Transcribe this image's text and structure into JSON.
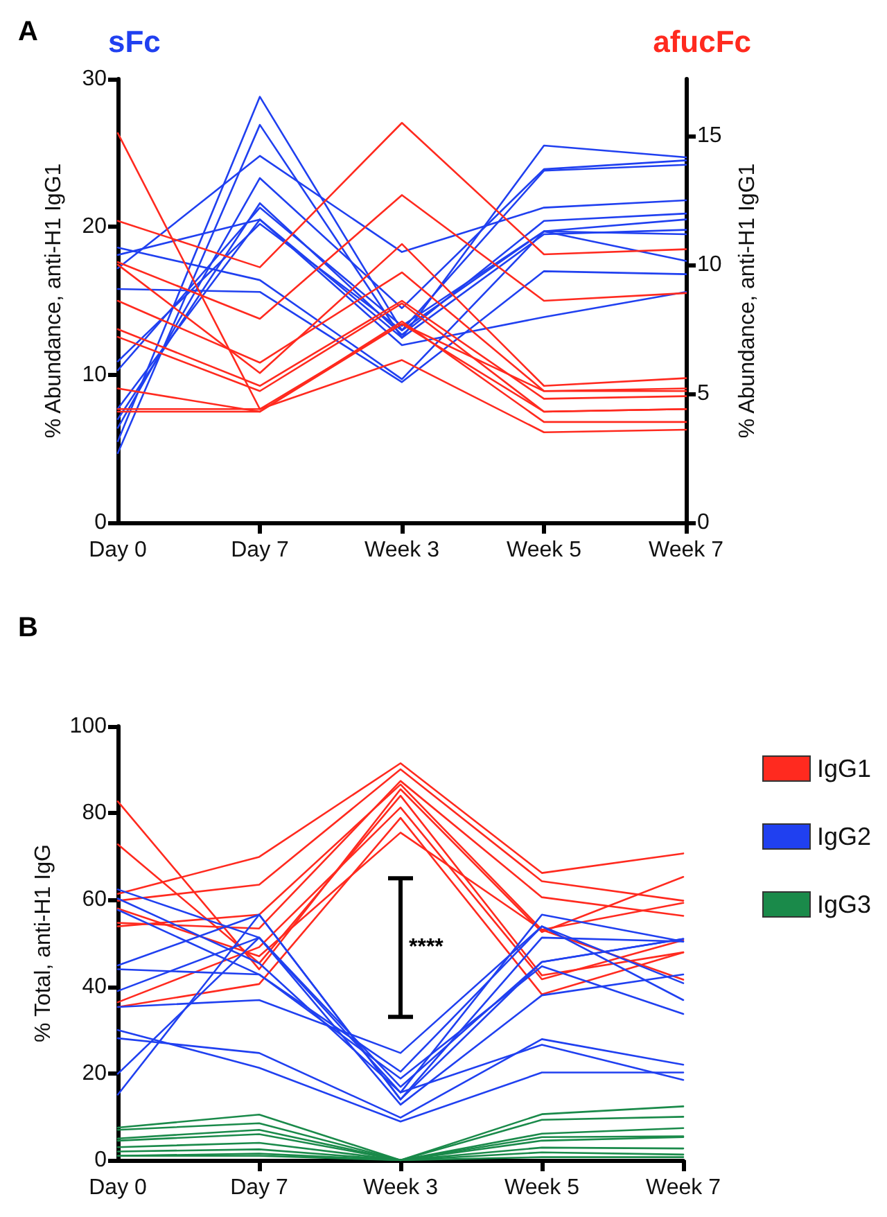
{
  "chart_data": [
    {
      "type": "line",
      "title": "A",
      "ylabel": "% Abundance, anti-H1 IgG1",
      "y2label": "% Abundance, anti-H1 IgG1",
      "categories": [
        "Day 0",
        "Day 7",
        "Week 3",
        "Week 5",
        "Week 7"
      ],
      "ylim": [
        0,
        30
      ],
      "yticks": [
        0,
        10,
        20,
        30
      ],
      "y2lim": [
        0,
        17.2
      ],
      "y2ticks": [
        0,
        5,
        10,
        15
      ],
      "grid": false,
      "legend": "top",
      "marker": "none",
      "line_style": "solid",
      "series": [
        {
          "name": "sFc",
          "color": "#2040f0",
          "values": [
            5.5,
            28.8,
            13.0,
            23.8,
            24.2
          ]
        },
        {
          "color": "#2040f0",
          "values": [
            4.7,
            26.9,
            12.5,
            25.5,
            24.7
          ]
        },
        {
          "color": "#2040f0",
          "values": [
            17.2,
            24.8,
            18.3,
            21.3,
            21.8
          ]
        },
        {
          "color": "#2040f0",
          "values": [
            6.4,
            23.3,
            14.5,
            23.9,
            24.5
          ]
        },
        {
          "color": "#2040f0",
          "values": [
            7.0,
            21.6,
            12.7,
            20.4,
            20.9
          ]
        },
        {
          "color": "#2040f0",
          "values": [
            10.3,
            21.3,
            13.3,
            19.7,
            20.5
          ]
        },
        {
          "color": "#2040f0",
          "values": [
            7.7,
            20.5,
            12.5,
            19.5,
            19.8
          ]
        },
        {
          "color": "#2040f0",
          "values": [
            10.9,
            20.2,
            13.0,
            19.7,
            19.5
          ]
        },
        {
          "color": "#2040f0",
          "values": [
            18.6,
            16.4,
            9.7,
            19.7,
            17.7
          ]
        },
        {
          "color": "#2040f0",
          "values": [
            15.8,
            15.6,
            9.5,
            17.0,
            16.8
          ]
        },
        {
          "color": "#2040f0",
          "values": [
            18.1,
            20.5,
            12.0,
            13.9,
            15.6
          ]
        },
        {
          "name": "afucFc",
          "color": "#ff2a1f",
          "axis": "y2",
          "values": [
            15.1,
            4.4,
            7.7,
            4.3,
            4.4
          ]
        },
        {
          "color": "#ff2a1f",
          "axis": "y2",
          "values": [
            11.7,
            9.9,
            15.5,
            10.4,
            10.6
          ]
        },
        {
          "color": "#ff2a1f",
          "axis": "y2",
          "values": [
            10.1,
            7.9,
            12.7,
            8.6,
            8.9
          ]
        },
        {
          "color": "#ff2a1f",
          "axis": "y2",
          "values": [
            10.0,
            5.8,
            10.8,
            5.3,
            5.6
          ]
        },
        {
          "color": "#ff2a1f",
          "axis": "y2",
          "values": [
            8.6,
            6.2,
            9.7,
            5.1,
            5.2
          ]
        },
        {
          "color": "#ff2a1f",
          "axis": "y2",
          "values": [
            7.5,
            5.3,
            8.6,
            4.8,
            4.9
          ]
        },
        {
          "color": "#ff2a1f",
          "axis": "y2",
          "values": [
            7.2,
            5.1,
            8.5,
            4.3,
            4.4
          ]
        },
        {
          "color": "#ff2a1f",
          "axis": "y2",
          "values": [
            5.2,
            4.3,
            7.8,
            3.9,
            3.9
          ]
        },
        {
          "color": "#ff2a1f",
          "axis": "y2",
          "values": [
            4.4,
            4.4,
            6.3,
            3.5,
            3.6
          ]
        },
        {
          "color": "#ff2a1f",
          "axis": "y2",
          "values": [
            4.3,
            4.3,
            7.7,
            5.1,
            5.1
          ]
        }
      ]
    },
    {
      "type": "line",
      "title": "B",
      "ylabel": "% Total, anti-H1 IgG",
      "categories": [
        "Day 0",
        "Day 7",
        "Week 3",
        "Week 5",
        "Week 7"
      ],
      "ylim": [
        0,
        100
      ],
      "yticks": [
        0,
        20,
        40,
        60,
        80,
        100
      ],
      "grid": false,
      "legend": "right",
      "marker": "none",
      "line_style": "solid",
      "annotations": [
        "****"
      ],
      "series": [
        {
          "name": "IgG1",
          "color": "#ff2a1f",
          "values": [
            82.7,
            44.0,
            85.5,
            52.6,
            65.3
          ]
        },
        {
          "color": "#ff2a1f",
          "values": [
            72.8,
            45.4,
            84.0,
            42.6,
            47.9
          ]
        },
        {
          "color": "#ff2a1f",
          "values": [
            61.4,
            69.9,
            91.5,
            66.2,
            70.7
          ]
        },
        {
          "color": "#ff2a1f",
          "values": [
            59.8,
            63.5,
            90.1,
            64.3,
            59.8
          ]
        },
        {
          "color": "#ff2a1f",
          "values": [
            54.7,
            53.4,
            87.4,
            60.6,
            56.3
          ]
        },
        {
          "color": "#ff2a1f",
          "values": [
            53.9,
            56.6,
            86.6,
            53.1,
            59.3
          ]
        },
        {
          "color": "#ff2a1f",
          "values": [
            36.4,
            49.1,
            81.3,
            41.7,
            50.7
          ]
        },
        {
          "color": "#ff2a1f",
          "values": [
            35.3,
            40.6,
            78.9,
            38.2,
            47.9
          ]
        },
        {
          "color": "#ff2a1f",
          "values": [
            58.0,
            47.0,
            75.5,
            53.1,
            41.6
          ]
        },
        {
          "name": "IgG2",
          "color": "#2040f0",
          "values": [
            62.4,
            51.3,
            16.9,
            45.7,
            51.0
          ]
        },
        {
          "color": "#2040f0",
          "values": [
            60.3,
            45.4,
            15.6,
            56.6,
            50.4
          ]
        },
        {
          "color": "#2040f0",
          "values": [
            57.7,
            42.8,
            20.4,
            53.9,
            36.9
          ]
        },
        {
          "color": "#2040f0",
          "values": [
            44.9,
            56.6,
            14.0,
            51.3,
            50.4
          ]
        },
        {
          "color": "#2040f0",
          "values": [
            44.0,
            42.8,
            18.8,
            44.7,
            33.7
          ]
        },
        {
          "color": "#2040f0",
          "values": [
            39.0,
            51.3,
            12.8,
            38.0,
            42.8
          ]
        },
        {
          "color": "#2040f0",
          "values": [
            35.3,
            36.9,
            24.7,
            53.9,
            40.8
          ]
        },
        {
          "color": "#2040f0",
          "values": [
            30.0,
            21.3,
            8.9,
            20.2,
            20.2
          ]
        },
        {
          "color": "#2040f0",
          "values": [
            28.1,
            24.7,
            9.8,
            27.9,
            22.0
          ]
        },
        {
          "color": "#2040f0",
          "values": [
            19.9,
            51.3,
            15.6,
            26.6,
            18.5
          ]
        },
        {
          "color": "#2040f0",
          "values": [
            15.1,
            56.6,
            14.0,
            45.7,
            51.0
          ]
        },
        {
          "name": "IgG3",
          "color": "#1a8a4a",
          "values": [
            7.5,
            10.5,
            0,
            10.6,
            12.4
          ]
        },
        {
          "color": "#1a8a4a",
          "values": [
            7.0,
            8.5,
            0,
            9.3,
            10.0
          ]
        },
        {
          "color": "#1a8a4a",
          "values": [
            5.0,
            7.0,
            0,
            6.1,
            7.4
          ]
        },
        {
          "color": "#1a8a4a",
          "values": [
            4.5,
            6.0,
            0,
            5.3,
            5.5
          ]
        },
        {
          "color": "#1a8a4a",
          "values": [
            3.0,
            4.0,
            0,
            4.5,
            5.3
          ]
        },
        {
          "color": "#1a8a4a",
          "values": [
            2.0,
            2.5,
            0,
            2.9,
            2.7
          ]
        },
        {
          "color": "#1a8a4a",
          "values": [
            1.0,
            1.0,
            0,
            1.8,
            1.3
          ]
        },
        {
          "color": "#1a8a4a",
          "values": [
            1.0,
            1.5,
            0,
            0.7,
            0.7
          ]
        }
      ]
    }
  ]
}
